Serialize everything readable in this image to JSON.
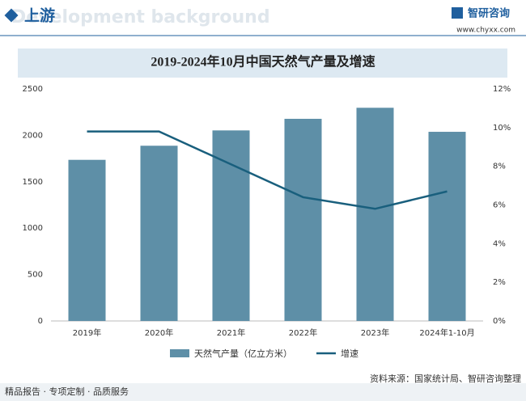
{
  "header": {
    "section": "上游",
    "watermark": "Development background",
    "logo": "智研咨询",
    "site": "www.chyxx.com"
  },
  "chart_data": {
    "type": "bar-line",
    "title": "2019-2024年10月中国天然气产量及增速",
    "categories": [
      "2019年",
      "2020年",
      "2021年",
      "2022年",
      "2023年",
      "2024年1-10月"
    ],
    "series": [
      {
        "name": "天然气产量（亿立方米）",
        "color": "#5e8fa7",
        "type": "bar",
        "values": [
          1736,
          1888,
          2053,
          2178,
          2297,
          2038
        ]
      },
      {
        "name": "增速",
        "color": "#195f7d",
        "type": "line",
        "axis": "y2",
        "values": [
          9.8,
          9.8,
          8.1,
          6.4,
          5.8,
          6.7
        ]
      }
    ],
    "ylim": [
      0,
      2500
    ],
    "yticks": [
      0,
      500,
      1000,
      1500,
      2000,
      2500
    ],
    "y2lim": [
      0,
      12
    ],
    "y2ticks": [
      {
        "value": 0,
        "label": "0%"
      },
      {
        "value": 2,
        "label": "2%"
      },
      {
        "value": 4,
        "label": "4%"
      },
      {
        "value": 6,
        "label": "6%"
      },
      {
        "value": 8,
        "label": "8%"
      },
      {
        "value": 10,
        "label": "10%"
      },
      {
        "value": 12,
        "label": "12%"
      }
    ],
    "grid": false
  },
  "footer": {
    "left": "精品报告 · 专项定制 · 品质服务",
    "source": "资料来源：国家统计局、智研咨询整理"
  }
}
